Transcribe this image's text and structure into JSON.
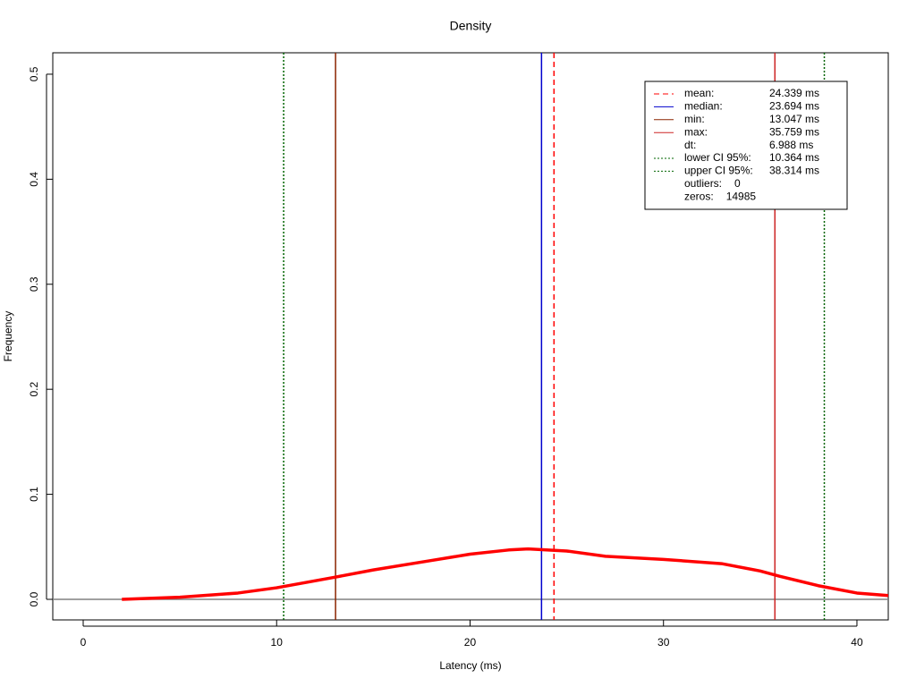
{
  "chart_data": {
    "type": "line",
    "title": "Density",
    "x_label": "Latency (ms)",
    "y_label": "Frequency",
    "x": [
      2,
      5,
      8,
      10,
      13,
      15,
      18,
      20,
      22,
      23,
      25,
      27,
      30,
      33,
      35,
      36,
      38,
      40,
      42
    ],
    "values": [
      0.0,
      0.002,
      0.006,
      0.011,
      0.021,
      0.028,
      0.037,
      0.043,
      0.047,
      0.048,
      0.046,
      0.041,
      0.038,
      0.034,
      0.027,
      0.022,
      0.013,
      0.006,
      0.003
    ],
    "color": "#ff0000",
    "baseline": 0,
    "xlim": [
      -1.572,
      41.62
    ],
    "ylim": [
      -0.0196,
      0.5204
    ],
    "xticks": [
      0,
      10,
      20,
      30,
      40
    ],
    "yticks": [
      {
        "value": 0,
        "label": "0.0"
      },
      0.1,
      0.2,
      0.3,
      0.4,
      0.5
    ],
    "legend": [
      {
        "name": "mean:",
        "value": 24.339,
        "value_label": "24.339 ms",
        "color": "#ff0000",
        "style": "dashed"
      },
      {
        "name": "median:",
        "value": 23.694,
        "value_label": "23.694 ms",
        "color": "#0000cd",
        "style": "solid"
      },
      {
        "name": "min:",
        "value": 13.047,
        "value_label": "13.047 ms",
        "color": "#8b2500",
        "style": "solid"
      },
      {
        "name": "max:",
        "value": 35.759,
        "value_label": "35.759 ms",
        "color": "#cd2626",
        "style": "solid"
      },
      {
        "name": "dt:",
        "value": 6.988,
        "value_label": "6.988 ms"
      },
      {
        "name": "lower CI 95%:",
        "value": 10.364,
        "value_label": "10.364 ms",
        "color": "#006400",
        "style": "dotted"
      },
      {
        "name": "upper CI 95%:",
        "value": 38.314,
        "value_label": "38.314 ms",
        "color": "#006400",
        "style": "dotted"
      },
      {
        "name": "outliers:",
        "value": 0
      },
      {
        "name": "zeros:",
        "value": 14985
      }
    ]
  }
}
